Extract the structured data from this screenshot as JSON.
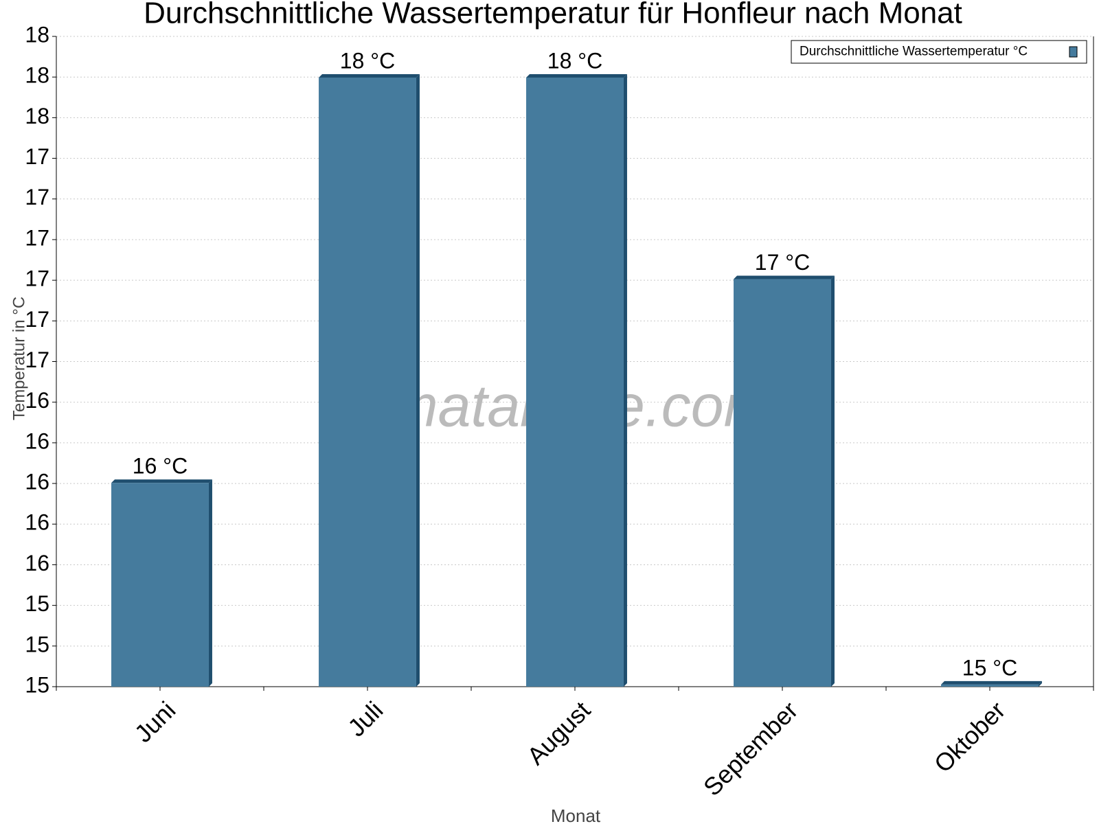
{
  "chart_data": {
    "type": "bar",
    "title": "Durchschnittliche Wassertemperatur für Honfleur nach Monat",
    "watermark": "klimatabelle.com",
    "x_label": "Monat",
    "y_label": "Temperatur in °C",
    "categories": [
      "Juni",
      "Juli",
      "August",
      "September",
      "Oktober"
    ],
    "series": [
      {
        "name": "Durchschnittliche Wassertemperatur °C",
        "color": "#457b9d",
        "values": [
          15.94,
          17.81,
          17.81,
          16.88,
          15.01
        ],
        "value_labels": [
          "16 °C",
          "18 °C",
          "18 °C",
          "17 °C",
          "15 °C"
        ]
      }
    ],
    "ylim": [
      15,
      18
    ],
    "yticks": [
      {
        "value": 15,
        "label": "15"
      },
      {
        "value": 15.1875,
        "label": "15"
      },
      {
        "value": 15.375,
        "label": "15"
      },
      {
        "value": 15.5625,
        "label": "16"
      },
      {
        "value": 15.75,
        "label": "16"
      },
      {
        "value": 15.9375,
        "label": "16"
      },
      {
        "value": 16.125,
        "label": "16"
      },
      {
        "value": 16.3125,
        "label": "16"
      },
      {
        "value": 16.5,
        "label": "17"
      },
      {
        "value": 16.6875,
        "label": "17"
      },
      {
        "value": 16.875,
        "label": "17"
      },
      {
        "value": 17.0625,
        "label": "17"
      },
      {
        "value": 17.25,
        "label": "17"
      },
      {
        "value": 17.4375,
        "label": "17"
      },
      {
        "value": 17.625,
        "label": "18"
      },
      {
        "value": 17.8125,
        "label": "18"
      },
      {
        "value": 18,
        "label": "18"
      }
    ],
    "grid": true,
    "legend_position": "upper right"
  }
}
